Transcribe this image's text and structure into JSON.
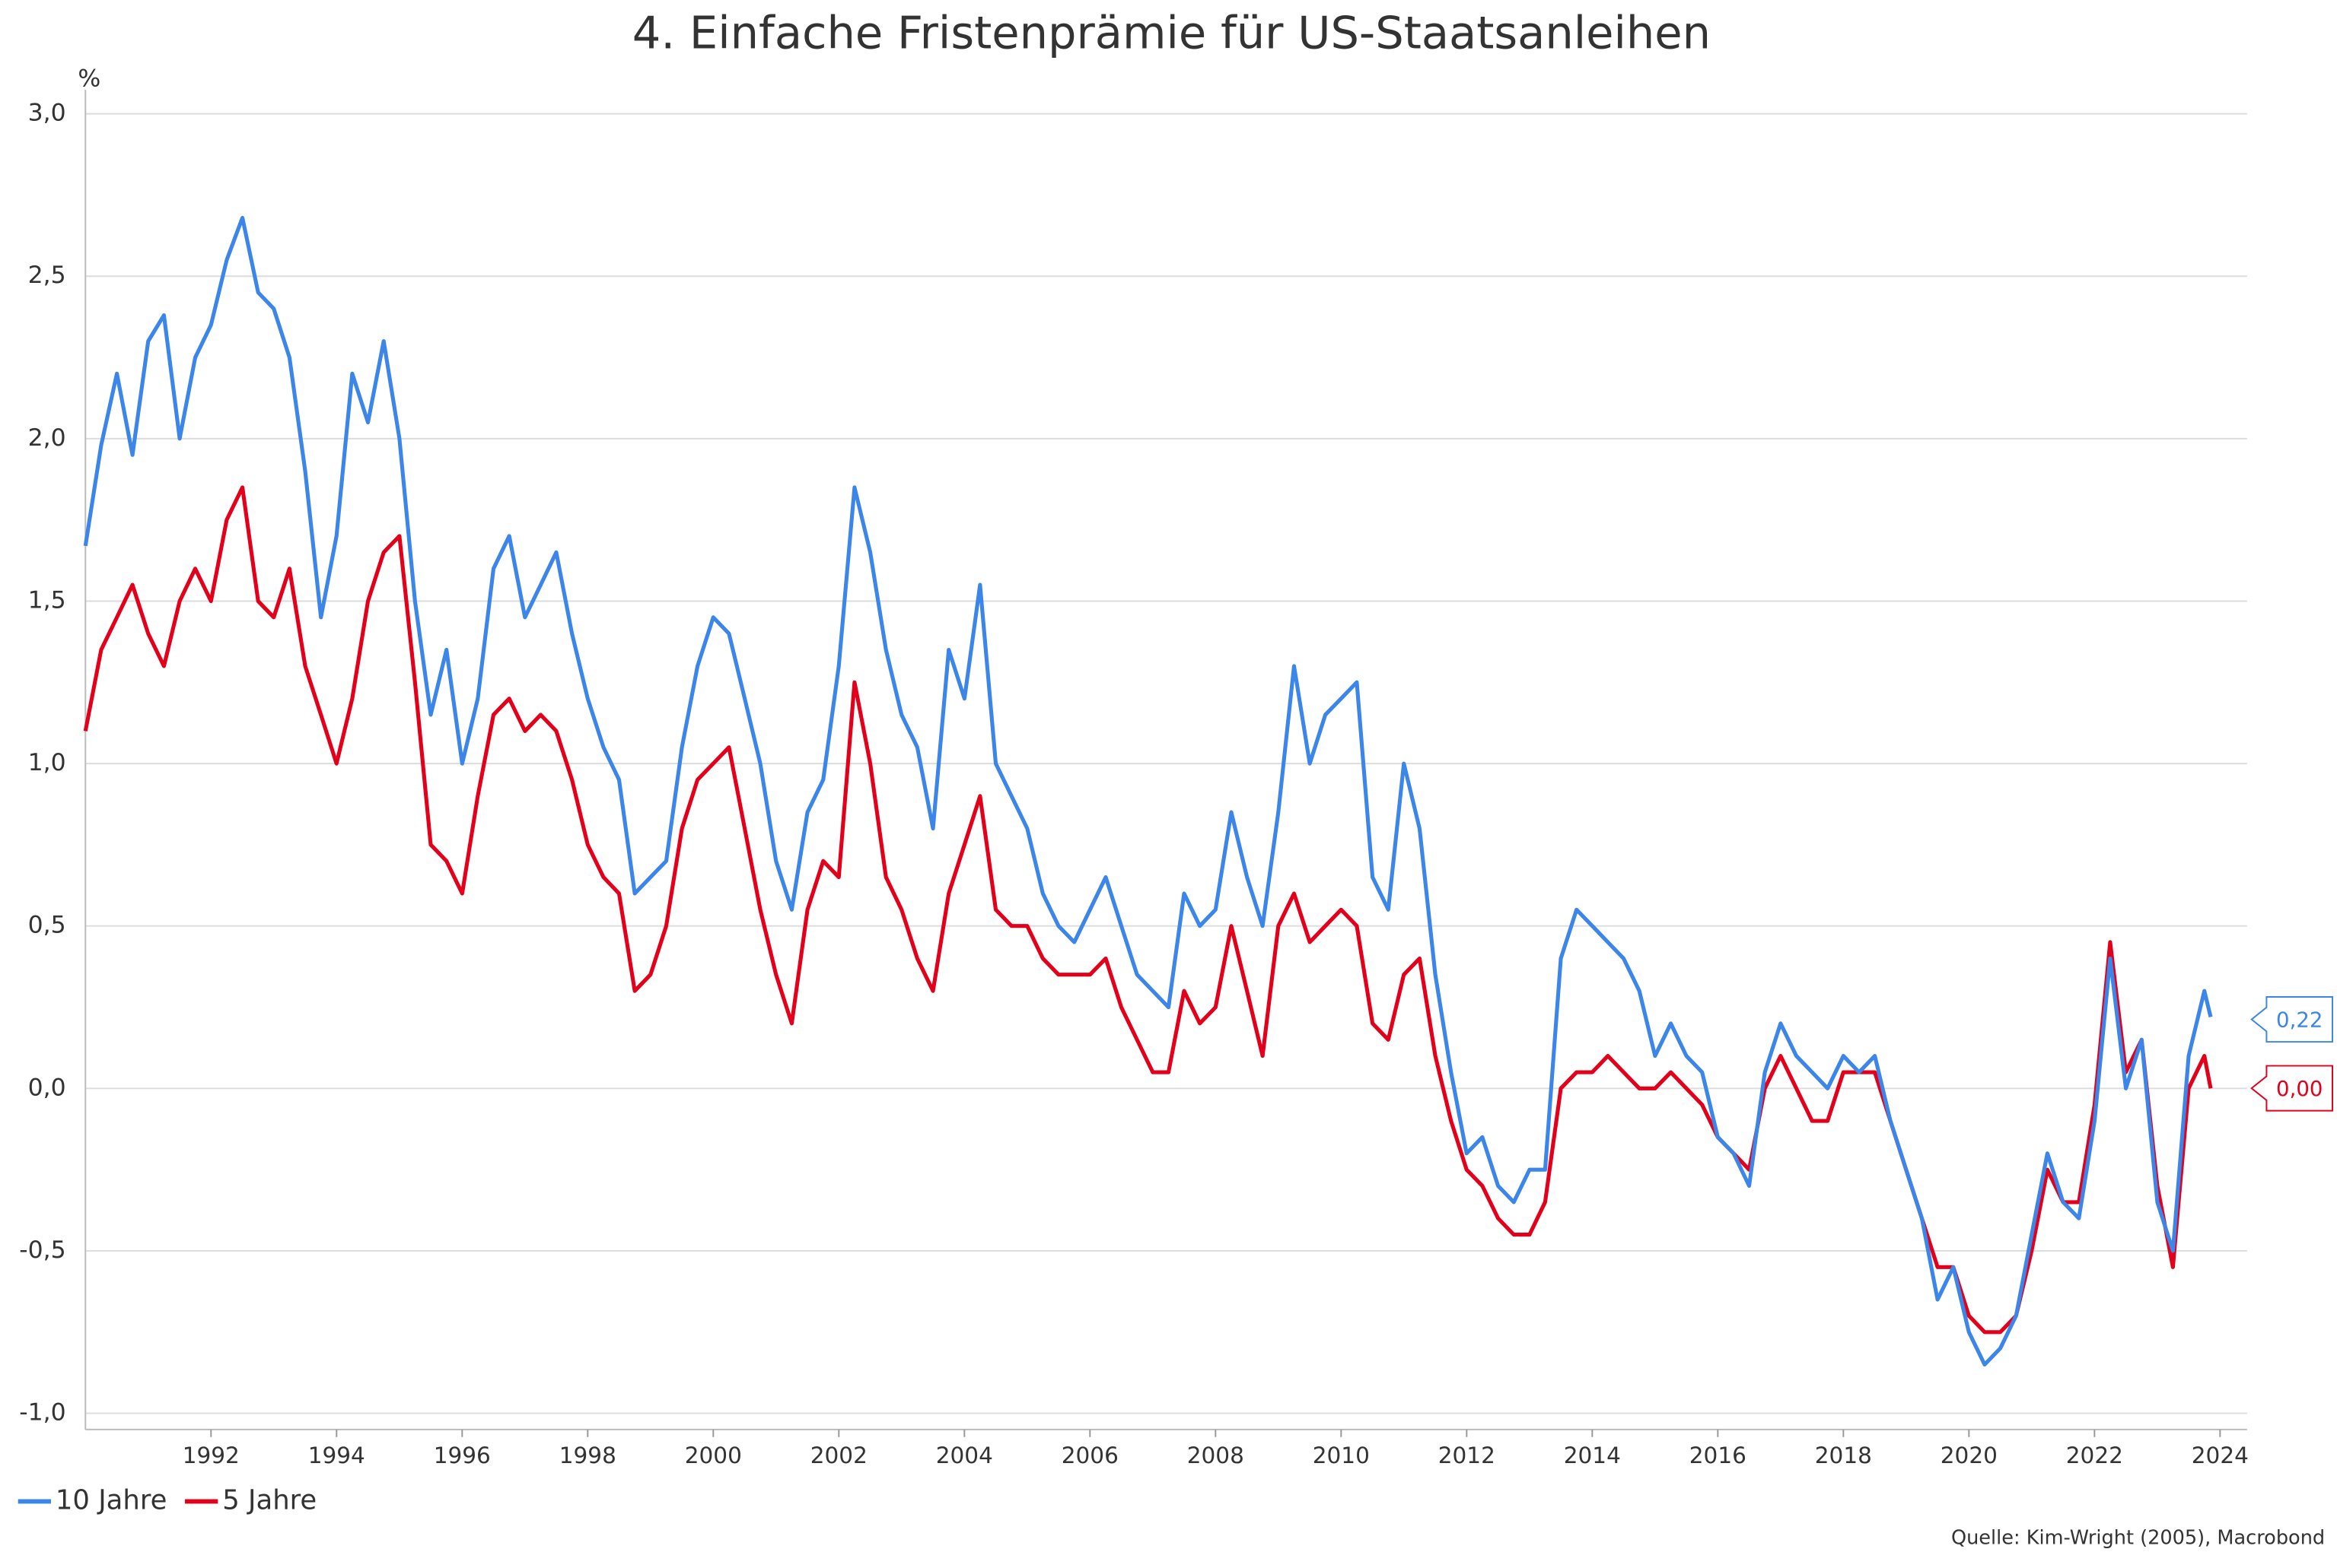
{
  "chart_data": {
    "type": "line",
    "title": "4. Einfache Fristenprämie für US-Staatsanleihen",
    "y_label": "%",
    "source": "Quelle: Kim-Wright (2005), Macrobond",
    "x": [
      1990,
      1990.25,
      1990.5,
      1990.75,
      1991,
      1991.25,
      1991.5,
      1991.75,
      1992,
      1992.25,
      1992.5,
      1992.75,
      1993,
      1993.25,
      1993.5,
      1993.75,
      1994,
      1994.25,
      1994.5,
      1994.75,
      1995,
      1995.25,
      1995.5,
      1995.75,
      1996,
      1996.25,
      1996.5,
      1996.75,
      1997,
      1997.25,
      1997.5,
      1997.75,
      1998,
      1998.25,
      1998.5,
      1998.75,
      1999,
      1999.25,
      1999.5,
      1999.75,
      2000,
      2000.25,
      2000.5,
      2000.75,
      2001,
      2001.25,
      2001.5,
      2001.75,
      2002,
      2002.25,
      2002.5,
      2002.75,
      2003,
      2003.25,
      2003.5,
      2003.75,
      2004,
      2004.25,
      2004.5,
      2004.75,
      2005,
      2005.25,
      2005.5,
      2005.75,
      2006,
      2006.25,
      2006.5,
      2006.75,
      2007,
      2007.25,
      2007.5,
      2007.75,
      2008,
      2008.25,
      2008.5,
      2008.75,
      2009,
      2009.25,
      2009.5,
      2009.75,
      2010,
      2010.25,
      2010.5,
      2010.75,
      2011,
      2011.25,
      2011.5,
      2011.75,
      2012,
      2012.25,
      2012.5,
      2012.75,
      2013,
      2013.25,
      2013.5,
      2013.75,
      2014,
      2014.25,
      2014.5,
      2014.75,
      2015,
      2015.25,
      2015.5,
      2015.75,
      2016,
      2016.25,
      2016.5,
      2016.75,
      2017,
      2017.25,
      2017.5,
      2017.75,
      2018,
      2018.25,
      2018.5,
      2018.75,
      2019,
      2019.25,
      2019.5,
      2019.75,
      2020,
      2020.25,
      2020.5,
      2020.75,
      2021,
      2021.25,
      2021.5,
      2021.75,
      2022,
      2022.25,
      2022.5,
      2022.75,
      2023,
      2023.25,
      2023.5,
      2023.75,
      2023.85
    ],
    "series": [
      {
        "name": "10 Jahre",
        "color": "#3b86e8",
        "end_label": "0,22",
        "values": [
          1.67,
          1.98,
          2.2,
          1.95,
          2.3,
          2.38,
          2.0,
          2.25,
          2.35,
          2.55,
          2.68,
          2.45,
          2.4,
          2.25,
          1.9,
          1.45,
          1.7,
          2.2,
          2.05,
          2.3,
          2.0,
          1.5,
          1.15,
          1.35,
          1.0,
          1.2,
          1.6,
          1.7,
          1.45,
          1.55,
          1.65,
          1.4,
          1.2,
          1.05,
          0.95,
          0.6,
          0.65,
          0.7,
          1.05,
          1.3,
          1.45,
          1.4,
          1.2,
          1.0,
          0.7,
          0.55,
          0.85,
          0.95,
          1.3,
          1.85,
          1.65,
          1.35,
          1.15,
          1.05,
          0.8,
          1.35,
          1.2,
          1.55,
          1.0,
          0.9,
          0.8,
          0.6,
          0.5,
          0.45,
          0.55,
          0.65,
          0.5,
          0.35,
          0.3,
          0.25,
          0.6,
          0.5,
          0.55,
          0.85,
          0.65,
          0.5,
          0.85,
          1.3,
          1.0,
          1.15,
          1.2,
          1.25,
          0.65,
          0.55,
          1.0,
          0.8,
          0.35,
          0.05,
          -0.2,
          -0.15,
          -0.3,
          -0.35,
          -0.25,
          -0.25,
          0.4,
          0.55,
          0.5,
          0.45,
          0.4,
          0.3,
          0.1,
          0.2,
          0.1,
          0.05,
          -0.15,
          -0.2,
          -0.3,
          0.05,
          0.2,
          0.1,
          0.05,
          0.0,
          0.1,
          0.05,
          0.1,
          -0.1,
          -0.25,
          -0.4,
          -0.65,
          -0.55,
          -0.75,
          -0.85,
          -0.8,
          -0.7,
          -0.45,
          -0.2,
          -0.35,
          -0.4,
          -0.1,
          0.4,
          0.0,
          0.15,
          -0.35,
          -0.5,
          0.1,
          0.3,
          0.22
        ]
      },
      {
        "name": "5 Jahre",
        "color": "#e3001b",
        "end_label": "0,00",
        "values": [
          1.1,
          1.35,
          1.45,
          1.55,
          1.4,
          1.3,
          1.5,
          1.6,
          1.5,
          1.75,
          1.85,
          1.5,
          1.45,
          1.6,
          1.3,
          1.15,
          1.0,
          1.2,
          1.5,
          1.65,
          1.7,
          1.25,
          0.75,
          0.7,
          0.6,
          0.9,
          1.15,
          1.2,
          1.1,
          1.15,
          1.1,
          0.95,
          0.75,
          0.65,
          0.6,
          0.3,
          0.35,
          0.5,
          0.8,
          0.95,
          1.0,
          1.05,
          0.8,
          0.55,
          0.35,
          0.2,
          0.55,
          0.7,
          0.65,
          1.25,
          1.0,
          0.65,
          0.55,
          0.4,
          0.3,
          0.6,
          0.75,
          0.9,
          0.55,
          0.5,
          0.5,
          0.4,
          0.35,
          0.35,
          0.35,
          0.4,
          0.25,
          0.15,
          0.05,
          0.05,
          0.3,
          0.2,
          0.25,
          0.5,
          0.3,
          0.1,
          0.5,
          0.6,
          0.45,
          0.5,
          0.55,
          0.5,
          0.2,
          0.15,
          0.35,
          0.4,
          0.1,
          -0.1,
          -0.25,
          -0.3,
          -0.4,
          -0.45,
          -0.45,
          -0.35,
          0.0,
          0.05,
          0.05,
          0.1,
          0.05,
          0.0,
          0.0,
          0.05,
          0.0,
          -0.05,
          -0.15,
          -0.2,
          -0.25,
          0.0,
          0.1,
          0.0,
          -0.1,
          -0.1,
          0.05,
          0.05,
          0.05,
          -0.1,
          -0.25,
          -0.4,
          -0.55,
          -0.55,
          -0.7,
          -0.75,
          -0.75,
          -0.7,
          -0.5,
          -0.25,
          -0.35,
          -0.35,
          -0.05,
          0.45,
          0.05,
          0.15,
          -0.3,
          -0.55,
          0.0,
          0.1,
          0.0
        ]
      }
    ],
    "xlim": [
      1990,
      2024.43
    ],
    "xticks": [
      1992,
      1994,
      1996,
      1998,
      2000,
      2002,
      2004,
      2006,
      2008,
      2010,
      2012,
      2014,
      2016,
      2018,
      2020,
      2022,
      2024
    ],
    "ylim": [
      -1.05,
      3.0
    ],
    "yticks": [
      {
        "value": -1,
        "label": "-1,0"
      },
      {
        "value": -0.5,
        "label": "-0,5"
      },
      {
        "value": 0,
        "label": "0,0"
      },
      {
        "value": 0.5,
        "label": "0,5"
      },
      {
        "value": 1,
        "label": "1,0"
      },
      {
        "value": 1.5,
        "label": "1,5"
      },
      {
        "value": 2,
        "label": "2,0"
      },
      {
        "value": 2.5,
        "label": "2,5"
      },
      {
        "value": 3,
        "label": "3,0"
      }
    ],
    "grid": true,
    "legend": "bottom-left"
  }
}
